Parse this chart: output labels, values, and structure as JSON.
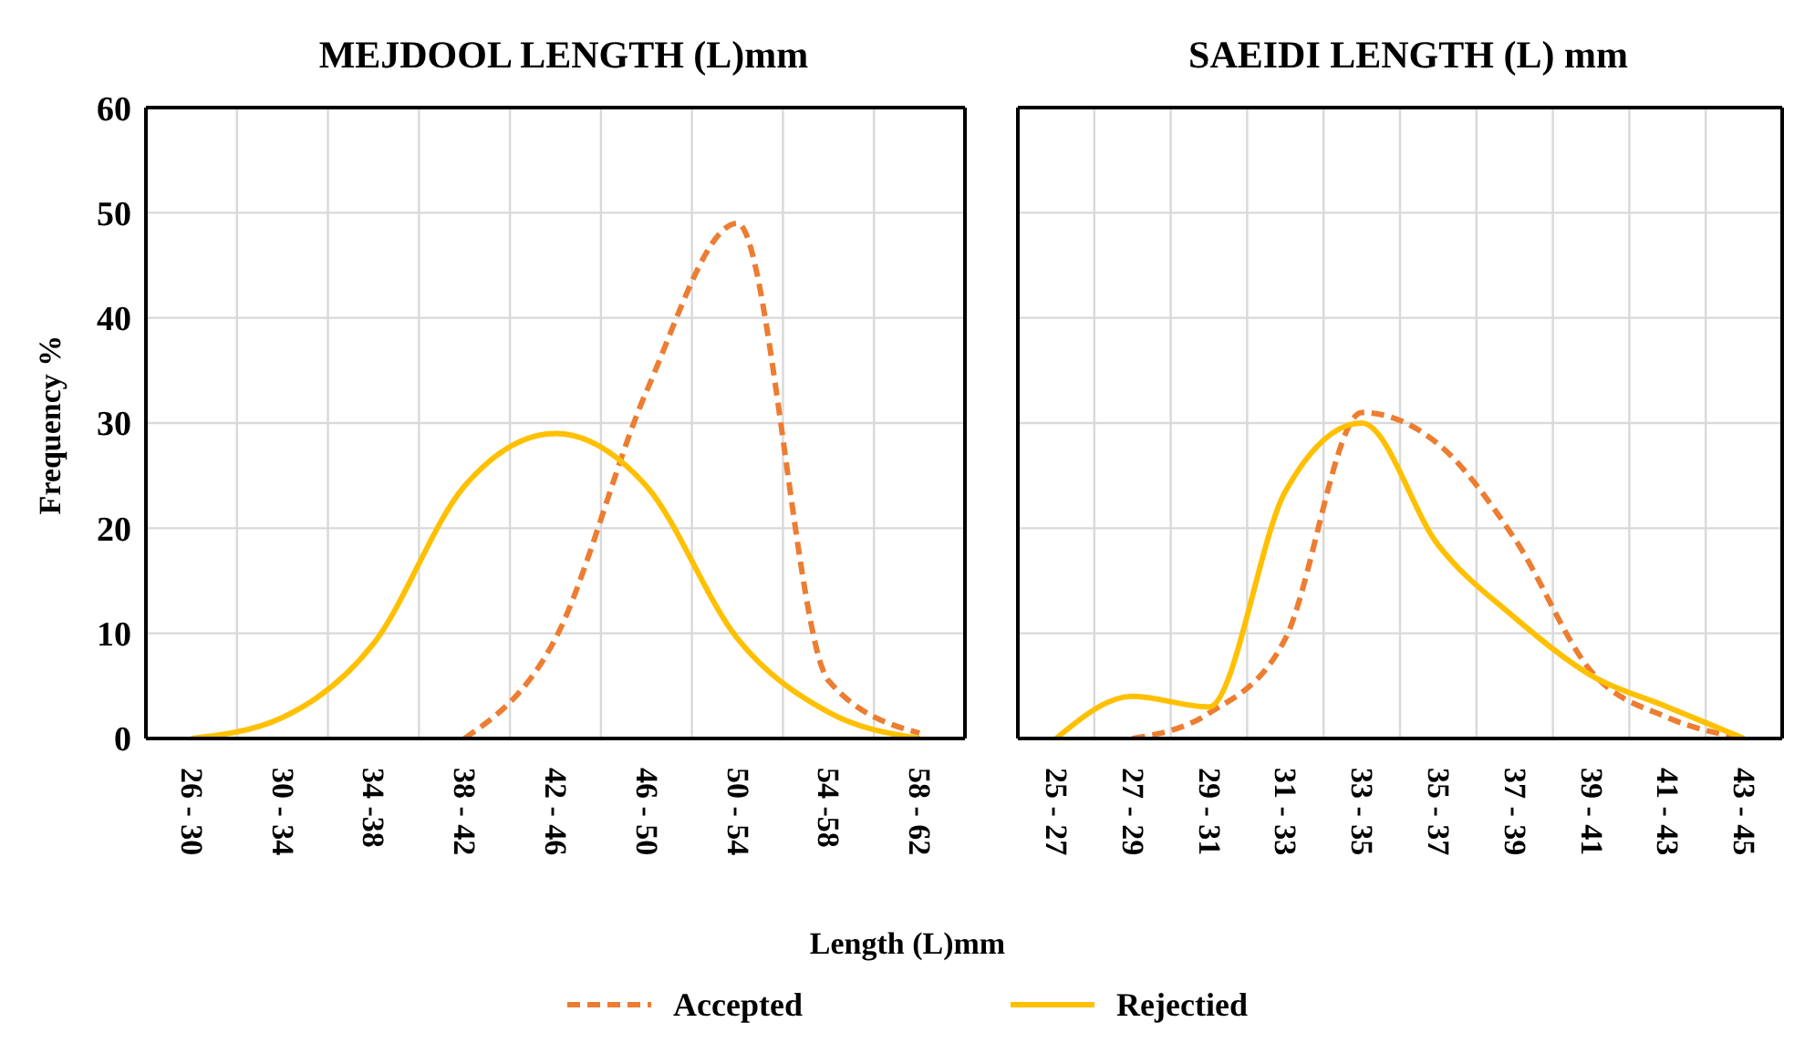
{
  "chart_data": [
    {
      "type": "line",
      "title": "MEJDOOL LENGTH (L)mm",
      "ylabel": "Frequency %",
      "xlabel": "Length (L)mm",
      "categories": [
        "26 - 30",
        "30 - 34",
        "34 -38",
        "38 - 42",
        "42 - 46",
        "46 - 50",
        "50 - 54",
        "54 -58",
        "58 - 62"
      ],
      "series": [
        {
          "name": "Accepted",
          "color": "#ed7d31",
          "line_style": "dashed",
          "values": [
            null,
            null,
            null,
            0,
            9.5,
            33,
            49,
            5.5,
            0.5
          ]
        },
        {
          "name": "Rejectied",
          "color": "#ffc000",
          "line_style": "solid",
          "values": [
            0,
            2,
            9,
            24,
            29,
            24,
            9.5,
            2.5,
            0
          ]
        }
      ],
      "ylim": [
        0,
        60
      ],
      "yticks": [
        0,
        10,
        20,
        30,
        40,
        50,
        60
      ],
      "grid": true,
      "legend": "bottom",
      "marker": "none"
    },
    {
      "type": "line",
      "title": "SAEIDI LENGTH (L) mm",
      "categories": [
        "25 - 27",
        "27 - 29",
        "29 - 31",
        "31 - 33",
        "33 - 35",
        "35 - 37",
        "37 - 39",
        "39 - 41",
        "41 - 43",
        "43 - 45"
      ],
      "series": [
        {
          "color": "#ed7d31",
          "line_style": "dashed",
          "values": [
            null,
            0,
            2.4,
            9.5,
            31,
            28,
            19,
            6.4,
            2,
            0
          ]
        },
        {
          "color": "#ffc000",
          "line_style": "solid",
          "values": [
            0,
            4,
            3,
            23.5,
            30,
            18.4,
            11.5,
            6,
            3,
            0
          ]
        }
      ],
      "ylim": [
        0,
        60
      ],
      "yticks": [
        0,
        10,
        20,
        30,
        40,
        50,
        60
      ],
      "grid": true,
      "tick_labels": "x",
      "marker": "none"
    }
  ]
}
